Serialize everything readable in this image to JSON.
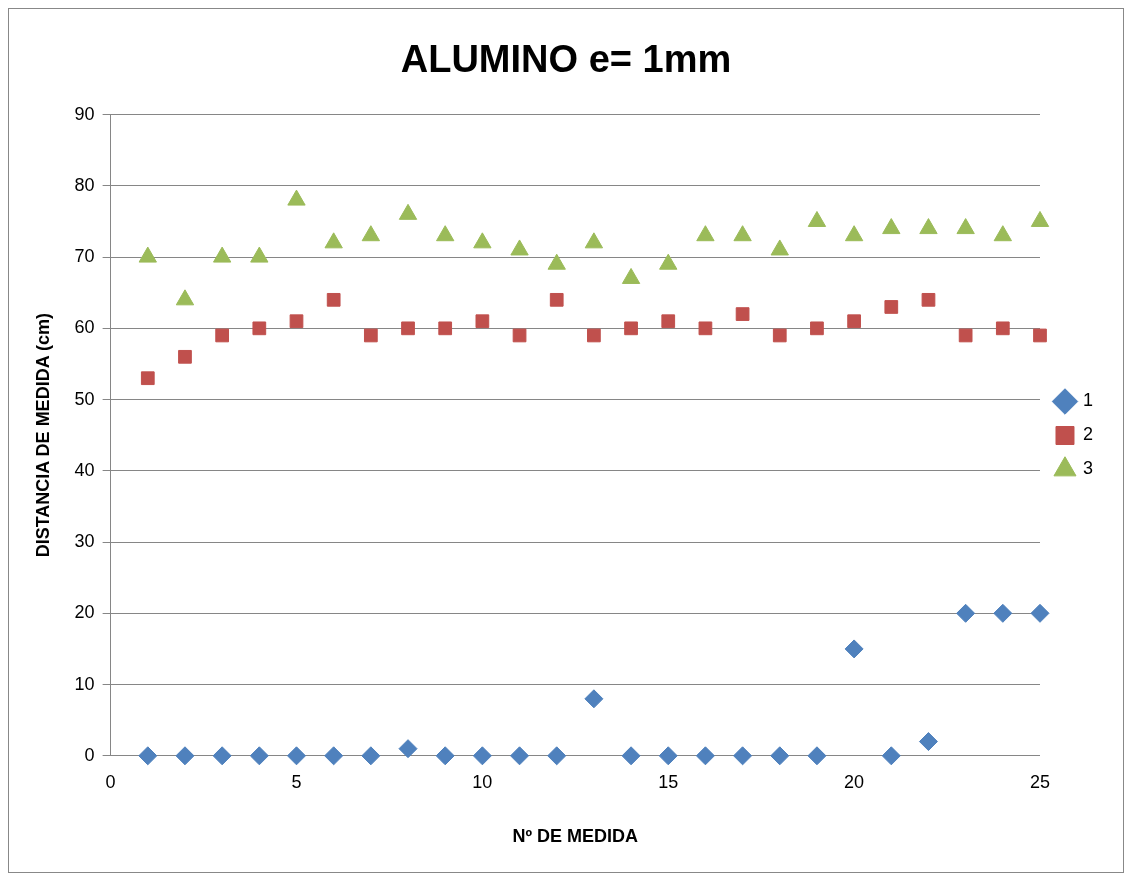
{
  "chart_data": {
    "type": "scatter",
    "title": "ALUMINO e= 1mm",
    "xlabel": "Nº DE MEDIDA",
    "ylabel": "DISTANCIA DE MEDIDA (cm)",
    "x": [
      1,
      2,
      3,
      4,
      5,
      6,
      7,
      8,
      9,
      10,
      11,
      12,
      13,
      14,
      15,
      16,
      17,
      18,
      19,
      20,
      21,
      22,
      23,
      24,
      25
    ],
    "series": [
      {
        "name": "1",
        "color": "#4f81bd",
        "marker": "diamond",
        "values": [
          0,
          0,
          0,
          0,
          0,
          0,
          0,
          1,
          0,
          0,
          0,
          0,
          8,
          0,
          0,
          0,
          0,
          0,
          0,
          15,
          0,
          2,
          20,
          20,
          20
        ]
      },
      {
        "name": "2",
        "color": "#c0504d",
        "marker": "square",
        "values": [
          53,
          56,
          59,
          60,
          61,
          64,
          59,
          60,
          60,
          61,
          59,
          64,
          59,
          60,
          61,
          60,
          62,
          59,
          60,
          61,
          63,
          64,
          59,
          60,
          59
        ]
      },
      {
        "name": "3",
        "color": "#9bbb59",
        "marker": "triangle",
        "values": [
          70,
          64,
          70,
          70,
          78,
          72,
          73,
          76,
          73,
          72,
          71,
          69,
          72,
          67,
          69,
          73,
          73,
          71,
          75,
          73,
          74,
          74,
          74,
          73,
          75
        ]
      }
    ],
    "xlim": [
      0,
      25
    ],
    "xticks": [
      0,
      5,
      10,
      15,
      20,
      25
    ],
    "ylim": [
      0,
      90
    ],
    "yticks": [
      0,
      10,
      20,
      30,
      40,
      50,
      60,
      70,
      80,
      90
    ],
    "grid": "y",
    "legend": "right"
  }
}
